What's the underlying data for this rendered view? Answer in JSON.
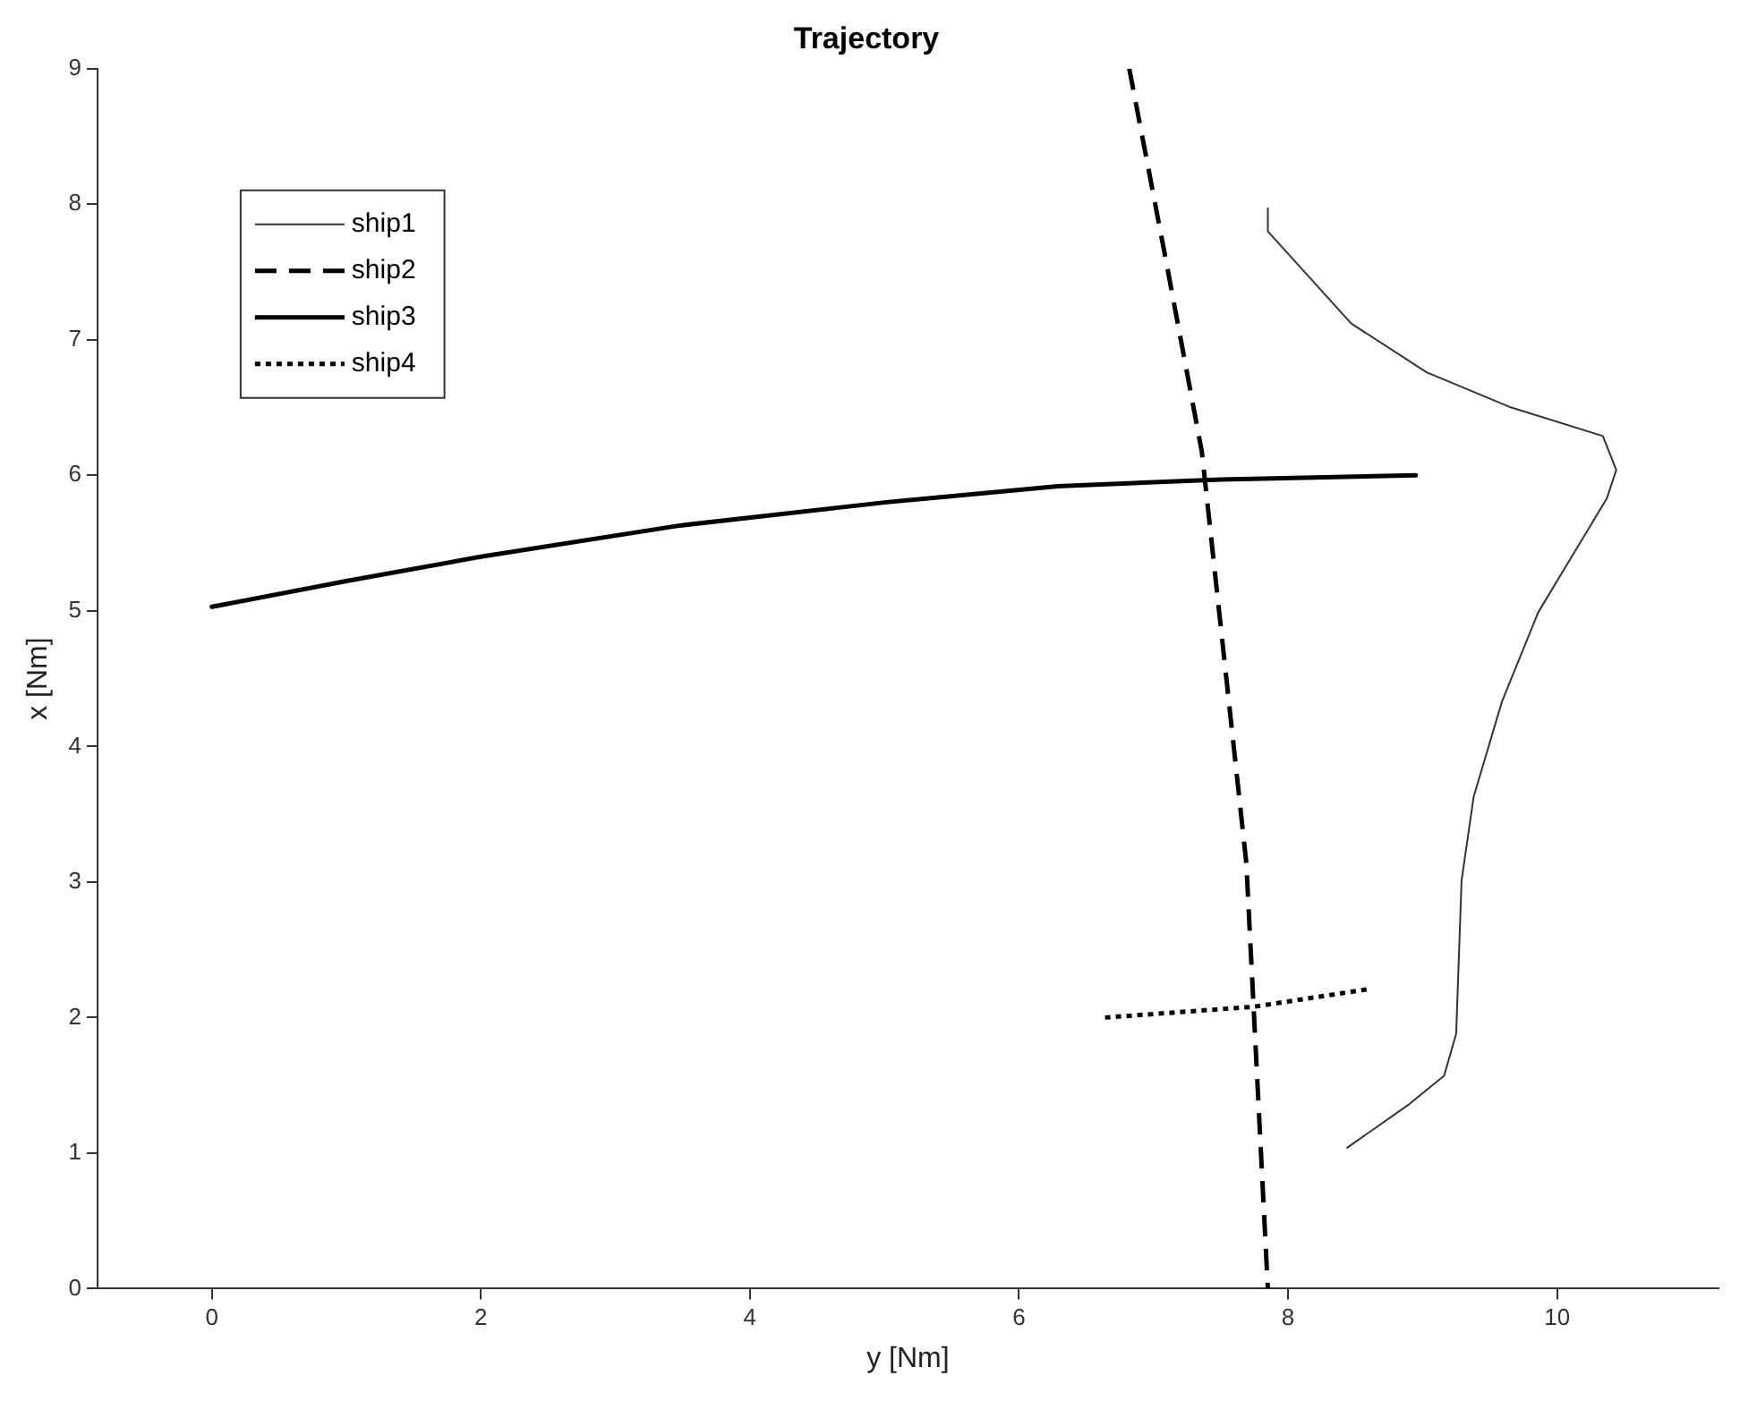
{
  "chart_data": {
    "type": "line",
    "title": "Trajectory",
    "xlabel": "y [Nm]",
    "ylabel": "x [Nm]",
    "xlim": [
      -0.85,
      11.2
    ],
    "ylim": [
      0,
      9
    ],
    "xticks": [
      0,
      2,
      4,
      6,
      8,
      10
    ],
    "yticks": [
      0,
      1,
      2,
      3,
      4,
      5,
      6,
      7,
      8,
      9
    ],
    "grid": false,
    "legend": "top left",
    "marker": "none",
    "series": [
      {
        "name": "ship1",
        "color": "#333333",
        "line_style": "solid",
        "x": [
          7.85,
          7.85,
          8.47,
          9.03,
          9.66,
          10.34,
          10.44,
          10.37,
          9.86,
          9.59,
          9.38,
          9.29,
          9.25,
          9.16,
          8.9,
          8.44
        ],
        "values": [
          7.97,
          7.8,
          7.12,
          6.76,
          6.5,
          6.29,
          6.04,
          5.83,
          4.99,
          4.33,
          3.63,
          3.01,
          1.88,
          1.57,
          1.36,
          1.04
        ]
      },
      {
        "name": "ship2",
        "color": "#000000",
        "line_style": "dashed",
        "x": [
          6.82,
          7.09,
          7.36,
          7.69,
          7.85
        ],
        "values": [
          9,
          7.6,
          6.17,
          3.14,
          0
        ]
      },
      {
        "name": "ship3",
        "color": "#000000",
        "line_style": "solid",
        "x": [
          0,
          1,
          2,
          3.48,
          5,
          6.29,
          7.5,
          8.95
        ],
        "values": [
          5.03,
          5.22,
          5.4,
          5.63,
          5.8,
          5.92,
          5.97,
          6.0
        ]
      },
      {
        "name": "ship4",
        "color": "#000000",
        "line_style": "dotted",
        "x": [
          6.64,
          7.75,
          8.6
        ],
        "values": [
          2.0,
          2.08,
          2.21
        ]
      }
    ]
  }
}
